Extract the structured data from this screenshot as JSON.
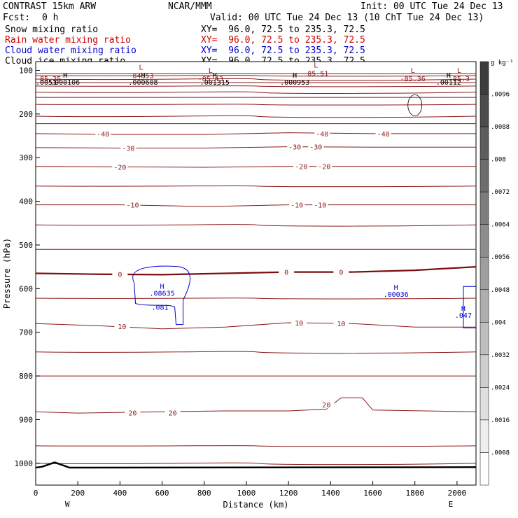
{
  "header": {
    "model": "CONTRAST 15km ARW",
    "org": "NCAR/MMM",
    "init": "Init: 00 UTC Tue 24 Dec 13",
    "fcst_label": "Fcst:",
    "fcst_value": "0 h",
    "valid": "Valid: 00 UTC Tue 24 Dec 13 (10 ChT Tue 24 Dec 13)",
    "fields": [
      {
        "name": "Snow mixing ratio",
        "xy": "XY=  96.0, 72.5 to 235.3, 72.5",
        "color": "#000000"
      },
      {
        "name": "Rain water mixing ratio",
        "xy": "XY=  96.0, 72.5 to 235.3, 72.5",
        "color": "#cc0000"
      },
      {
        "name": "Cloud water mixing ratio",
        "xy": "XY=  96.0, 72.5 to 235.3, 72.5",
        "color": "#0000cc"
      },
      {
        "name": "Cloud ice mixing ratio",
        "xy": "XY=  96.0, 72.5 to 235.3, 72.5",
        "color": "#000000"
      }
    ]
  },
  "chart_data": {
    "type": "contour",
    "xlabel": "Distance (km)",
    "ylabel": "Pressure (hPa)",
    "xlim": [
      0,
      2090
    ],
    "ylim": [
      1050,
      80
    ],
    "x_ticks": [
      0,
      200,
      400,
      600,
      800,
      1000,
      1200,
      1400,
      1600,
      1800,
      2000
    ],
    "y_ticks": [
      100,
      200,
      300,
      400,
      500,
      600,
      700,
      800,
      900,
      1000
    ],
    "x_end_labels": {
      "left": "W",
      "right": "E"
    },
    "temperature_contours": [
      {
        "label": "-40",
        "points": [
          [
            0,
            245
          ],
          [
            400,
            247
          ],
          [
            800,
            247
          ],
          [
            1200,
            243
          ],
          [
            1600,
            245
          ],
          [
            2090,
            245
          ]
        ],
        "labels_at": [
          [
            320,
            245
          ],
          [
            1360,
            245
          ],
          [
            1650,
            245
          ]
        ]
      },
      {
        "label": "-30",
        "points": [
          [
            0,
            277
          ],
          [
            400,
            278
          ],
          [
            800,
            278
          ],
          [
            1200,
            275
          ],
          [
            1600,
            276
          ],
          [
            2090,
            276
          ]
        ],
        "labels_at": [
          [
            440,
            278
          ],
          [
            1230,
            275
          ],
          [
            1330,
            275
          ]
        ]
      },
      {
        "label": "-20",
        "points": [
          [
            0,
            320
          ],
          [
            400,
            321
          ],
          [
            800,
            322
          ],
          [
            1200,
            320
          ],
          [
            1600,
            320
          ],
          [
            2090,
            320
          ]
        ],
        "labels_at": [
          [
            400,
            321
          ],
          [
            1260,
            320
          ],
          [
            1370,
            320
          ]
        ]
      },
      {
        "label": "-10",
        "points": [
          [
            0,
            408
          ],
          [
            400,
            408
          ],
          [
            800,
            412
          ],
          [
            1200,
            408
          ],
          [
            1600,
            408
          ],
          [
            2090,
            408
          ]
        ],
        "labels_at": [
          [
            460,
            408
          ],
          [
            1240,
            408
          ],
          [
            1350,
            408
          ]
        ]
      },
      {
        "label": "0",
        "points": [
          [
            0,
            565
          ],
          [
            300,
            567
          ],
          [
            600,
            568
          ],
          [
            900,
            565
          ],
          [
            1200,
            562
          ],
          [
            1500,
            562
          ],
          [
            1800,
            558
          ],
          [
            2090,
            550
          ]
        ],
        "labels_at": [
          [
            400,
            567
          ],
          [
            1190,
            562
          ],
          [
            1450,
            562
          ]
        ]
      },
      {
        "label": "10",
        "points": [
          [
            0,
            680
          ],
          [
            300,
            685
          ],
          [
            600,
            692
          ],
          [
            900,
            688
          ],
          [
            1200,
            678
          ],
          [
            1500,
            680
          ],
          [
            1800,
            688
          ],
          [
            2090,
            688
          ]
        ],
        "labels_at": [
          [
            410,
            686
          ],
          [
            1250,
            678
          ],
          [
            1450,
            680
          ]
        ]
      },
      {
        "label": "20",
        "points": [
          [
            0,
            882
          ],
          [
            200,
            885
          ],
          [
            600,
            882
          ],
          [
            900,
            880
          ],
          [
            1200,
            880
          ],
          [
            1380,
            876
          ],
          [
            1450,
            850
          ],
          [
            1550,
            850
          ],
          [
            1600,
            878
          ],
          [
            2090,
            882
          ]
        ],
        "labels_at": [
          [
            460,
            884
          ],
          [
            650,
            884
          ],
          [
            1380,
            866
          ]
        ]
      }
    ],
    "extra_isotherms_hpa": [
      108,
      112,
      120,
      128,
      136,
      150,
      162,
      178,
      205,
      222,
      365,
      454,
      510,
      622,
      745,
      800,
      960,
      1000
    ],
    "highs_lows": [
      {
        "type": "L",
        "value": "-84.53",
        "x": 500,
        "p": 105
      },
      {
        "type": "L",
        "value": "-85.43",
        "x": 830,
        "p": 112
      },
      {
        "type": "L",
        "value": "-85.51",
        "x": 1330,
        "p": 100
      },
      {
        "type": "L",
        "value": "-85.36",
        "x": 1790,
        "p": 112
      },
      {
        "type": "L",
        "value": "-85.3",
        "x": 2010,
        "p": 112
      },
      {
        "type": "",
        "value": "-85.25",
        "x": 0,
        "p": 112
      }
    ],
    "snow_highs": [
      {
        "type": "",
        "value": ".0051",
        "x": 0,
        "p": 130
      },
      {
        "type": "H",
        "value": ".000106",
        "x": 140,
        "p": 130
      },
      {
        "type": "H",
        "value": ".000608",
        "x": 510,
        "p": 130
      },
      {
        "type": "H",
        "value": ".001315",
        "x": 850,
        "p": 130
      },
      {
        "type": "H",
        "value": ".000953",
        "x": 1230,
        "p": 130
      },
      {
        "type": "H",
        "value": ".00112",
        "x": 1960,
        "p": 130
      }
    ],
    "cloud_water": [
      {
        "type": "H",
        "value": ".08635",
        "x": 600,
        "p": 610
      },
      {
        "type": "",
        "value": ".081",
        "x": 590,
        "p": 642
      },
      {
        "type": "H",
        "value": ".00036",
        "x": 1710,
        "p": 612
      },
      {
        "type": "H",
        "value": ".047",
        "x": 2030,
        "p": 660
      }
    ],
    "terrain_hpa": [
      [
        0,
        1010
      ],
      [
        30,
        1008
      ],
      [
        60,
        1003
      ],
      [
        90,
        998
      ],
      [
        120,
        1003
      ],
      [
        160,
        1010
      ],
      [
        2090,
        1009
      ]
    ],
    "colorbar": {
      "unit": "g kg⁻¹",
      "levels": [
        ".0096",
        ".0088",
        ".008",
        ".0072",
        ".0064",
        ".0056",
        ".0048",
        ".004",
        ".0032",
        ".0024",
        ".0016",
        ".0008"
      ]
    },
    "colors": {
      "temperature": "#8b1a1a",
      "freezing": "#7a0e0e",
      "cloud_water": "#0000cc",
      "terrain": "#000000",
      "axis": "#000000"
    }
  }
}
